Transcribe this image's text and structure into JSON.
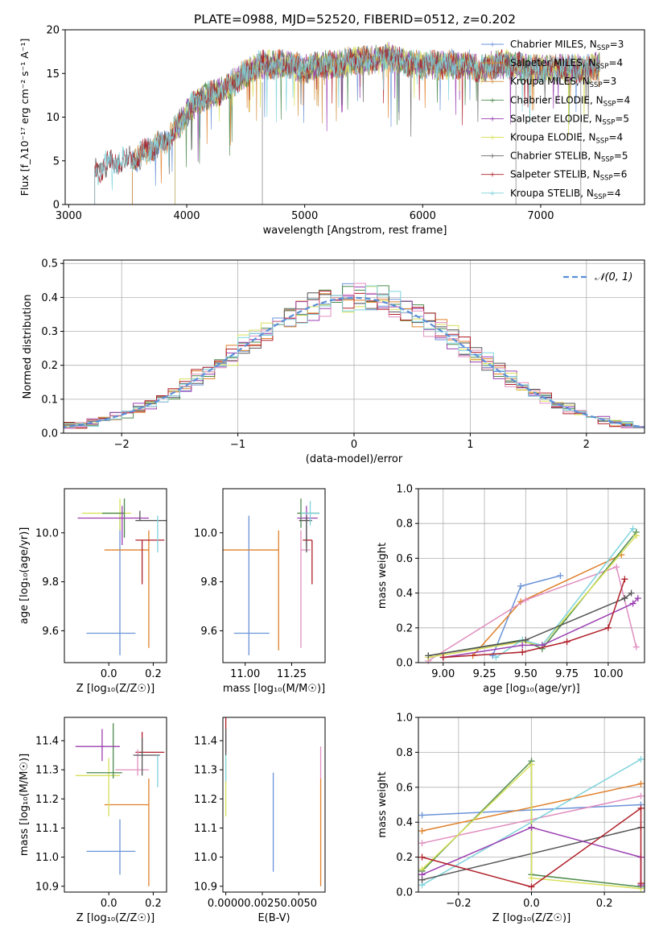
{
  "chart_data": [
    {
      "id": "spectrum",
      "type": "line",
      "title": "PLATE=0988, MJD=52520, FIBERID=0512, z=0.202",
      "xlabel": "wavelength [Angstrom, rest frame]",
      "ylabel": "Flux [f_λ10⁻¹⁷ erg cm⁻² s⁻¹ A⁻¹]",
      "xlim": [
        2970,
        7880
      ],
      "ylim": [
        0,
        20
      ],
      "xticks": [
        3000,
        4000,
        5000,
        6000,
        7000
      ],
      "yticks": [
        0,
        5,
        10,
        15,
        20
      ],
      "legend_position": "top-right",
      "data_envelope": {
        "x": [
          3200,
          3300,
          3400,
          3500,
          3600,
          3700,
          3800,
          3900,
          4000,
          4100,
          4200,
          4300,
          4400,
          4500,
          4600,
          4700,
          4800,
          4900,
          5000,
          5100,
          5200,
          5300,
          5400,
          5500,
          5600,
          5700,
          5800,
          5900,
          6000,
          6100,
          6200,
          6300,
          6400,
          6500,
          6600,
          6700,
          6800,
          6900,
          7000,
          7100,
          7200,
          7300,
          7400,
          7500,
          7600,
          7700,
          7800
        ],
        "y": [
          3.5,
          4.5,
          5,
          5,
          5.5,
          6.5,
          7,
          8.5,
          10.5,
          12,
          12.5,
          13,
          14,
          15,
          16,
          16,
          16,
          16,
          15.5,
          16,
          16,
          16,
          16.5,
          16.5,
          16.5,
          17,
          16.5,
          16,
          16,
          16,
          16,
          16,
          16,
          15.5,
          16,
          16,
          16,
          15.5,
          15.5,
          15.5,
          15.5,
          15.5,
          15.5,
          16,
          15.5,
          16,
          16
        ]
      },
      "series": [
        {
          "name": "Chabrier MILES, N_SSP=3",
          "color": "#6a93d8",
          "start": 3540
        },
        {
          "name": "Salpeter MILES, N_SSP=4",
          "color": "#e0802a",
          "start": 3540
        },
        {
          "name": "Kroupa MILES, N_SSP=3",
          "color": "#d09040",
          "start": 3540
        },
        {
          "name": "Chabrier ELODIE, N_SSP=4",
          "color": "#4c8a4c",
          "start": 3900
        },
        {
          "name": "Salpeter ELODIE, N_SSP=5",
          "color": "#9a3fb0",
          "start": 3900
        },
        {
          "name": "Kroupa ELODIE, N_SSP=4",
          "color": "#d8e05a",
          "start": 3900
        },
        {
          "name": "Chabrier STELIB, N_SSP=5",
          "color": "#666666",
          "start": 3220
        },
        {
          "name": "Salpeter STELIB, N_SSP=6",
          "color": "#b0202a",
          "start": 3220
        },
        {
          "name": "Kroupa STELIB, N_SSP=4",
          "color": "#7fd3dc",
          "start": 3220
        }
      ]
    },
    {
      "id": "residuals",
      "type": "histogram",
      "xlabel": "(data-model)/error",
      "ylabel": "Normed distribution",
      "xlim": [
        -2.5,
        2.5
      ],
      "ylim": [
        0,
        0.51
      ],
      "xticks": [
        -2,
        -1,
        0,
        1,
        2
      ],
      "yticks": [
        0.0,
        0.1,
        0.2,
        0.3,
        0.4,
        0.5
      ],
      "grid": true,
      "legend": "𝒩(0, 1)",
      "legend_position": "top-right",
      "bin_width": 0.1,
      "colors": [
        "#6a93d8",
        "#e0802a",
        "#4c8a4c",
        "#9a3fb0",
        "#d8e05a",
        "#555555",
        "#b0202a",
        "#e08fbf",
        "#7fd3dc"
      ]
    },
    {
      "id": "age-vs-Z",
      "type": "errorbar",
      "xlabel": "Z [log₁₀(Z/Z☉)]",
      "ylabel": "age  [log₁₀(age/yr)]",
      "xlim": [
        -0.2,
        0.26
      ],
      "ylim": [
        9.47,
        10.18
      ],
      "xticks": [
        0.0,
        0.2
      ],
      "yticks": [
        9.6,
        9.8,
        10.0
      ],
      "points": [
        {
          "x": 0.05,
          "y": 9.59,
          "xerr": [
            0.15,
            0.07
          ],
          "yerr": [
            0.09,
            0.48
          ],
          "color": "#6a93d8"
        },
        {
          "x": 0.18,
          "y": 9.93,
          "xerr": [
            0.2,
            0.0
          ],
          "yerr": [
            0.4,
            0.08
          ],
          "color": "#e0802a"
        },
        {
          "x": 0.05,
          "y": 10.08,
          "xerr": [
            0.17,
            0.05
          ],
          "yerr": [
            0.07,
            0.06
          ],
          "color": "#d8e05a"
        },
        {
          "x": 0.07,
          "y": 10.08,
          "xerr": [
            0.1,
            0.0
          ],
          "yerr": [
            0.1,
            0.06
          ],
          "color": "#4c8a4c"
        },
        {
          "x": 0.06,
          "y": 10.06,
          "xerr": [
            0.2,
            0.12
          ],
          "yerr": [
            0.11,
            0.05
          ],
          "color": "#9a3fb0"
        },
        {
          "x": 0.15,
          "y": 9.97,
          "xerr": [
            0.03,
            0.1
          ],
          "yerr": [
            0.18,
            0.0
          ],
          "color": "#b0202a"
        },
        {
          "x": 0.14,
          "y": 10.05,
          "xerr": [
            0.02,
            0.12
          ],
          "yerr": [
            0.0,
            0.04
          ],
          "color": "#555555"
        },
        {
          "x": 0.22,
          "y": 10.05,
          "xerr": [
            0.0,
            0.0
          ],
          "yerr": [
            0.13,
            0.02
          ],
          "color": "#7fd3dc"
        }
      ]
    },
    {
      "id": "age-vs-mass",
      "type": "errorbar",
      "xlabel": "mass [log₁₀(M/M☉)]",
      "ylabel": "",
      "xlim": [
        10.88,
        11.43
      ],
      "ylim": [
        9.47,
        10.18
      ],
      "xticks": [
        11.0,
        11.25
      ],
      "yticks": [
        9.6,
        9.8,
        10.0
      ],
      "points": [
        {
          "x": 11.02,
          "y": 9.59,
          "xerr": [
            0.08,
            0.11
          ],
          "yerr": [
            0.09,
            0.48
          ],
          "color": "#6a93d8"
        },
        {
          "x": 11.18,
          "y": 9.93,
          "xerr": [
            0.3,
            0.0
          ],
          "yerr": [
            0.41,
            0.08
          ],
          "color": "#e0802a"
        },
        {
          "x": 11.3,
          "y": 10.08,
          "xerr": [
            0.02,
            0.1
          ],
          "yerr": [
            0.06,
            0.06
          ],
          "color": "#4c8a4c"
        },
        {
          "x": 11.33,
          "y": 10.06,
          "xerr": [
            0.05,
            0.06
          ],
          "yerr": [
            0.12,
            0.05
          ],
          "color": "#9a3fb0"
        },
        {
          "x": 11.36,
          "y": 9.97,
          "xerr": [
            0.05,
            0.0
          ],
          "yerr": [
            0.18,
            0.0
          ],
          "color": "#b0202a"
        },
        {
          "x": 11.3,
          "y": 9.93,
          "xerr": [
            0.0,
            0.05
          ],
          "yerr": [
            0.4,
            0.08
          ],
          "color": "#e08fbf"
        },
        {
          "x": 11.33,
          "y": 10.05,
          "xerr": [
            0.04,
            0.03
          ],
          "yerr": [
            0.13,
            0.02
          ],
          "color": "#555555"
        },
        {
          "x": 11.35,
          "y": 10.08,
          "xerr": [
            0.05,
            0.05
          ],
          "yerr": [
            0.05,
            0.05
          ],
          "color": "#7fd3dc"
        }
      ]
    },
    {
      "id": "weight-vs-age",
      "type": "line",
      "xlabel": "age  [log₁₀(age/yr)]",
      "ylabel": "mass weight",
      "xlim": [
        8.85,
        10.22
      ],
      "ylim": [
        0.0,
        1.0
      ],
      "xticks": [
        9.0,
        9.25,
        9.5,
        9.75,
        10.0
      ],
      "yticks": [
        0.0,
        0.2,
        0.4,
        0.6,
        0.8,
        1.0
      ],
      "grid": true,
      "series": [
        {
          "color": "#6a93d8",
          "x": [
            9.3,
            9.47,
            9.71
          ],
          "y": [
            0.04,
            0.44,
            0.5
          ]
        },
        {
          "color": "#e0802a",
          "x": [
            9.18,
            9.47,
            10.08
          ],
          "y": [
            0.04,
            0.35,
            0.62
          ]
        },
        {
          "color": "#e08fbf",
          "x": [
            8.91,
            9.5,
            10.05,
            10.17
          ],
          "y": [
            0.01,
            0.36,
            0.55,
            0.09
          ]
        },
        {
          "color": "#4c8a4c",
          "x": [
            8.91,
            9.48,
            9.6,
            10.17
          ],
          "y": [
            0.04,
            0.13,
            0.08,
            0.75
          ]
        },
        {
          "color": "#d8e05a",
          "x": [
            8.91,
            9.48,
            9.6,
            10.17
          ],
          "y": [
            0.03,
            0.12,
            0.1,
            0.73
          ]
        },
        {
          "color": "#7fd3dc",
          "x": [
            9.32,
            9.48,
            9.6,
            10.15
          ],
          "y": [
            0.03,
            0.13,
            0.1,
            0.77
          ]
        },
        {
          "color": "#9a3fb0",
          "x": [
            9.0,
            9.48,
            9.6,
            10.15,
            10.18
          ],
          "y": [
            0.03,
            0.1,
            0.1,
            0.34,
            0.37
          ]
        },
        {
          "color": "#555555",
          "x": [
            8.91,
            9.5,
            10.1,
            10.14
          ],
          "y": [
            0.04,
            0.13,
            0.37,
            0.4
          ]
        },
        {
          "color": "#b0202a",
          "x": [
            9.0,
            9.48,
            9.75,
            10.0,
            10.1
          ],
          "y": [
            0.03,
            0.06,
            0.12,
            0.2,
            0.48
          ]
        }
      ]
    },
    {
      "id": "mass-vs-Z",
      "type": "errorbar",
      "xlabel": "Z [log₁₀(Z/Z☉)]",
      "ylabel": "mass [log₁₀(M/M☉)]",
      "xlim": [
        -0.2,
        0.26
      ],
      "ylim": [
        10.88,
        11.48
      ],
      "xticks": [
        0.0,
        0.2
      ],
      "yticks": [
        10.9,
        11.0,
        11.1,
        11.2,
        11.3,
        11.4
      ],
      "points": [
        {
          "x": 0.05,
          "y": 11.02,
          "xerr": [
            0.15,
            0.07
          ],
          "yerr": [
            0.08,
            0.11
          ],
          "color": "#6a93d8"
        },
        {
          "x": 0.18,
          "y": 11.18,
          "xerr": [
            0.2,
            0.0
          ],
          "yerr": [
            0.28,
            0.09
          ],
          "color": "#e0802a"
        },
        {
          "x": 0.0,
          "y": 11.28,
          "xerr": [
            0.15,
            0.05
          ],
          "yerr": [
            0.14,
            0.06
          ],
          "color": "#d8e05a"
        },
        {
          "x": 0.02,
          "y": 11.29,
          "xerr": [
            0.12,
            0.04
          ],
          "yerr": [
            0.02,
            0.17
          ],
          "color": "#4c8a4c"
        },
        {
          "x": -0.03,
          "y": 11.38,
          "xerr": [
            0.12,
            0.08
          ],
          "yerr": [
            0.05,
            0.06
          ],
          "color": "#9a3fb0"
        },
        {
          "x": 0.15,
          "y": 11.36,
          "xerr": [
            0.03,
            0.1
          ],
          "yerr": [
            0.0,
            0.07
          ],
          "color": "#b0202a"
        },
        {
          "x": 0.13,
          "y": 11.3,
          "xerr": [
            0.1,
            0.05
          ],
          "yerr": [
            0.02,
            0.07
          ],
          "color": "#e08fbf"
        },
        {
          "x": 0.15,
          "y": 11.35,
          "xerr": [
            0.04,
            0.08
          ],
          "yerr": [
            0.07,
            0.06
          ],
          "color": "#555555"
        },
        {
          "x": 0.22,
          "y": 11.35,
          "xerr": [
            0.0,
            0.0
          ],
          "yerr": [
            0.11,
            0.0
          ],
          "color": "#7fd3dc"
        }
      ]
    },
    {
      "id": "mass-vs-EBV",
      "type": "errorbar",
      "xlabel": "E(B-V)",
      "ylabel": "",
      "xlim": [
        -0.0002,
        0.0068
      ],
      "ylim": [
        10.88,
        11.48
      ],
      "xticks": [
        0.0,
        0.0025,
        0.005
      ],
      "xticklabels": [
        "0.0000",
        "0.0025",
        "0.0050"
      ],
      "yticks": [
        10.9,
        11.0,
        11.1,
        11.2,
        11.3,
        11.4
      ],
      "points": [
        {
          "x": 0.00325,
          "y": 11.12,
          "yerr": [
            0.17,
            0.17
          ],
          "color": "#6a93d8"
        },
        {
          "x": 0.0065,
          "y": 11.1,
          "yerr": [
            0.2,
            0.17
          ],
          "color": "#e0802a"
        },
        {
          "x": 0.0065,
          "y": 11.3,
          "yerr": [
            0.03,
            0.08
          ],
          "color": "#e08fbf"
        },
        {
          "x": 0.0,
          "y": 11.22,
          "yerr": [
            0.08,
            0.12
          ],
          "color": "#d8e05a"
        },
        {
          "x": 0.0,
          "y": 11.3,
          "yerr": [
            0.04,
            0.12
          ],
          "color": "#7fd3dc"
        },
        {
          "x": 0.0,
          "y": 11.42,
          "yerr": [
            0.06,
            0.06
          ],
          "color": "#b0202a"
        },
        {
          "x": 0.0,
          "y": 11.39,
          "yerr": [
            0.04,
            0.05
          ],
          "color": "#555555"
        }
      ]
    },
    {
      "id": "weight-vs-Z",
      "type": "line",
      "xlabel": "Z [log₁₀(Z/Z☉)]",
      "ylabel": "mass weight",
      "xlim": [
        -0.31,
        0.31
      ],
      "ylim": [
        0.0,
        1.0
      ],
      "xticks": [
        -0.2,
        0.0,
        0.2
      ],
      "yticks": [
        0.0,
        0.2,
        0.4,
        0.6,
        0.8,
        1.0
      ],
      "grid": true,
      "series": [
        {
          "color": "#6a93d8",
          "x": [
            -0.3,
            0.3
          ],
          "y": [
            0.44,
            0.5
          ]
        },
        {
          "color": "#e0802a",
          "x": [
            -0.3,
            0.3
          ],
          "y": [
            0.35,
            0.62
          ]
        },
        {
          "color": "#e08fbf",
          "x": [
            -0.3,
            0.3
          ],
          "y": [
            0.28,
            0.55
          ]
        },
        {
          "color": "#7fd3dc",
          "x": [
            -0.3,
            0.3
          ],
          "y": [
            0.04,
            0.76
          ]
        },
        {
          "color": "#555555",
          "x": [
            -0.3,
            0.3
          ],
          "y": [
            0.07,
            0.37
          ]
        },
        {
          "color": "#4c8a4c",
          "x": [
            -0.3,
            0.0,
            0.0,
            0.3
          ],
          "y": [
            0.12,
            0.75,
            0.1,
            0.03
          ]
        },
        {
          "color": "#d8e05a",
          "x": [
            -0.3,
            0.0,
            0.0,
            0.3
          ],
          "y": [
            0.13,
            0.73,
            0.08,
            0.02
          ]
        },
        {
          "color": "#9a3fb0",
          "x": [
            -0.3,
            0.0,
            0.3,
            0.3
          ],
          "y": [
            0.1,
            0.37,
            0.2,
            0.04
          ]
        },
        {
          "color": "#b0202a",
          "x": [
            -0.3,
            0.0,
            0.3,
            0.3
          ],
          "y": [
            0.2,
            0.03,
            0.48,
            0.05
          ]
        }
      ]
    }
  ]
}
